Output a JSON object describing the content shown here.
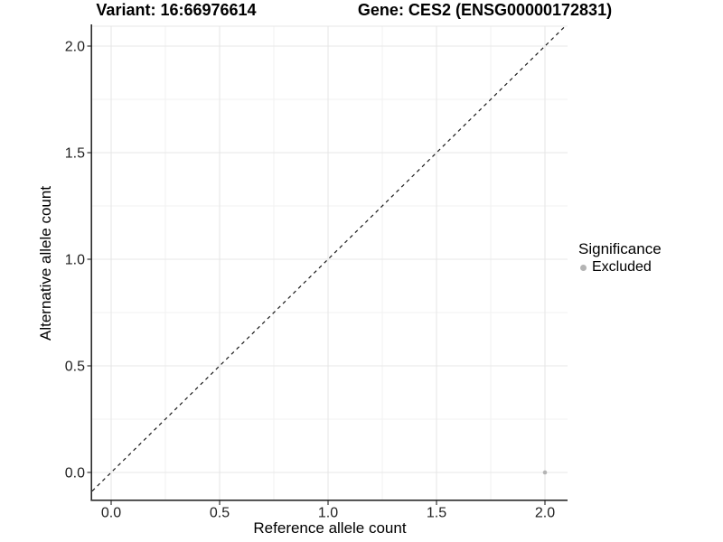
{
  "figure": {
    "title_left": "Variant: 16:66976614",
    "title_right": "Gene: CES2 (ENSG00000172831)",
    "x_axis_label": "Reference allele count",
    "y_axis_label": "Alternative allele count",
    "legend": {
      "title": "Significance",
      "items": [
        {
          "label": "Excluded",
          "color": "#b4b4b4"
        }
      ]
    }
  },
  "chart_data": {
    "type": "scatter",
    "title": "Variant: 16:66976614 / Gene: CES2 (ENSG00000172831)",
    "xlabel": "Reference allele count",
    "ylabel": "Alternative allele count",
    "xlim": [
      -0.1,
      2.1
    ],
    "ylim": [
      -0.1,
      2.1
    ],
    "x_ticks": [
      0.0,
      0.5,
      1.0,
      1.5,
      2.0
    ],
    "y_ticks": [
      0.0,
      0.5,
      1.0,
      1.5,
      2.0
    ],
    "tick_decimals": 1,
    "grid": true,
    "minor_grid": true,
    "legend_position": "right",
    "series": [
      {
        "name": "Excluded",
        "color": "#b4b4b4",
        "marker": "circle",
        "points": [
          {
            "x": 2.0,
            "y": 0.0
          }
        ]
      }
    ],
    "reference_line": {
      "slope": 1,
      "intercept": 0,
      "style": "dashed",
      "color": "#1a1a1a"
    }
  }
}
